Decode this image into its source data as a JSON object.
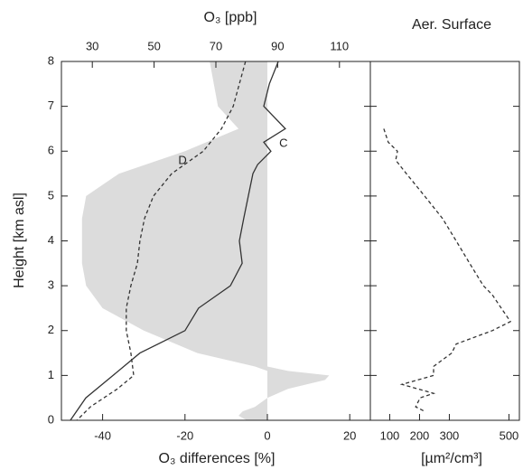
{
  "chart_data": [
    {
      "type": "line",
      "title": "O₃ [ppb]",
      "xlabel": "O₃ differences [%]",
      "ylabel": "Height [km asl]",
      "xlim": [
        -50,
        25
      ],
      "xticks": [
        -40,
        -20,
        0,
        20
      ],
      "x2lim": [
        20,
        120
      ],
      "x2ticks": [
        30,
        50,
        70,
        90,
        110
      ],
      "ylim": [
        0,
        8
      ],
      "yticks": [
        0,
        1,
        2,
        3,
        4,
        5,
        6,
        7,
        8
      ],
      "band": {
        "color": "#dcdcdc",
        "y": [
          8,
          7.5,
          7,
          6.5,
          6,
          5.5,
          5,
          4.5,
          4,
          3.5,
          3,
          2.5,
          2,
          1.5,
          1.2,
          1.1,
          1.0,
          0.9,
          0.7,
          0.5,
          0.3,
          0.2,
          0.1,
          0
        ],
        "lower": [
          -14,
          -13,
          -12,
          -7,
          -20,
          -36,
          -44,
          -45,
          -45,
          -45,
          -44,
          -40,
          -30,
          -17,
          -3,
          0,
          0,
          0,
          0,
          0,
          -3,
          -6,
          -7,
          -5
        ],
        "upper": [
          0,
          0,
          0,
          0,
          0,
          0,
          0,
          0,
          0,
          0,
          0,
          0,
          0,
          0,
          0,
          5,
          15,
          14,
          5,
          0,
          0,
          0,
          0,
          0
        ]
      },
      "series": [
        {
          "name": "C",
          "color": "#333333",
          "dash": false,
          "axis": "x2",
          "y": [
            8,
            7.5,
            7,
            6.5,
            6.2,
            6,
            5.7,
            5.5,
            5,
            4.5,
            4,
            3.5,
            3,
            2.5,
            2,
            1.5,
            1,
            0.5,
            0
          ],
          "values": [
            90.2,
            87.3,
            85.5,
            92.5,
            85.5,
            87.8,
            83.5,
            82,
            80.5,
            79,
            77.6,
            78.5,
            74.7,
            64.4,
            60,
            45.4,
            36.7,
            27.9,
            22.9
          ]
        },
        {
          "name": "D",
          "color": "#333333",
          "dash": true,
          "axis": "x2",
          "y": [
            8,
            7.5,
            7,
            6.5,
            6,
            5.5,
            5,
            4.5,
            4,
            3.5,
            3,
            2.5,
            2,
            1.5,
            1,
            0.7,
            0.3,
            0
          ],
          "values": [
            79.6,
            77.6,
            75.6,
            71.8,
            65.9,
            55.7,
            49.8,
            46.9,
            45.4,
            44.6,
            42.5,
            41,
            41,
            42.5,
            43.4,
            38.1,
            29.4,
            25
          ]
        }
      ]
    },
    {
      "type": "line",
      "title": "Aer. Surface",
      "xlabel": "[µm²/cm³]",
      "xlim": [
        35,
        535
      ],
      "xticks": [
        100,
        200,
        300,
        500
      ],
      "ylim": [
        0,
        8
      ],
      "series": [
        {
          "color": "#333333",
          "dash": true,
          "y": [
            6.5,
            6.2,
            6.0,
            5.8,
            5.5,
            5,
            4.5,
            4,
            3.5,
            3,
            2.8,
            2.5,
            2.2,
            2,
            1.7,
            1.5,
            1.2,
            1,
            0.8,
            0.6,
            0.5,
            0.3,
            0.2
          ],
          "values": [
            80,
            95,
            126,
            120,
            156,
            217,
            277,
            323,
            368,
            414,
            444,
            474,
            505,
            444,
            323,
            308,
            247,
            247,
            141,
            247,
            202,
            187,
            217
          ]
        }
      ]
    }
  ]
}
